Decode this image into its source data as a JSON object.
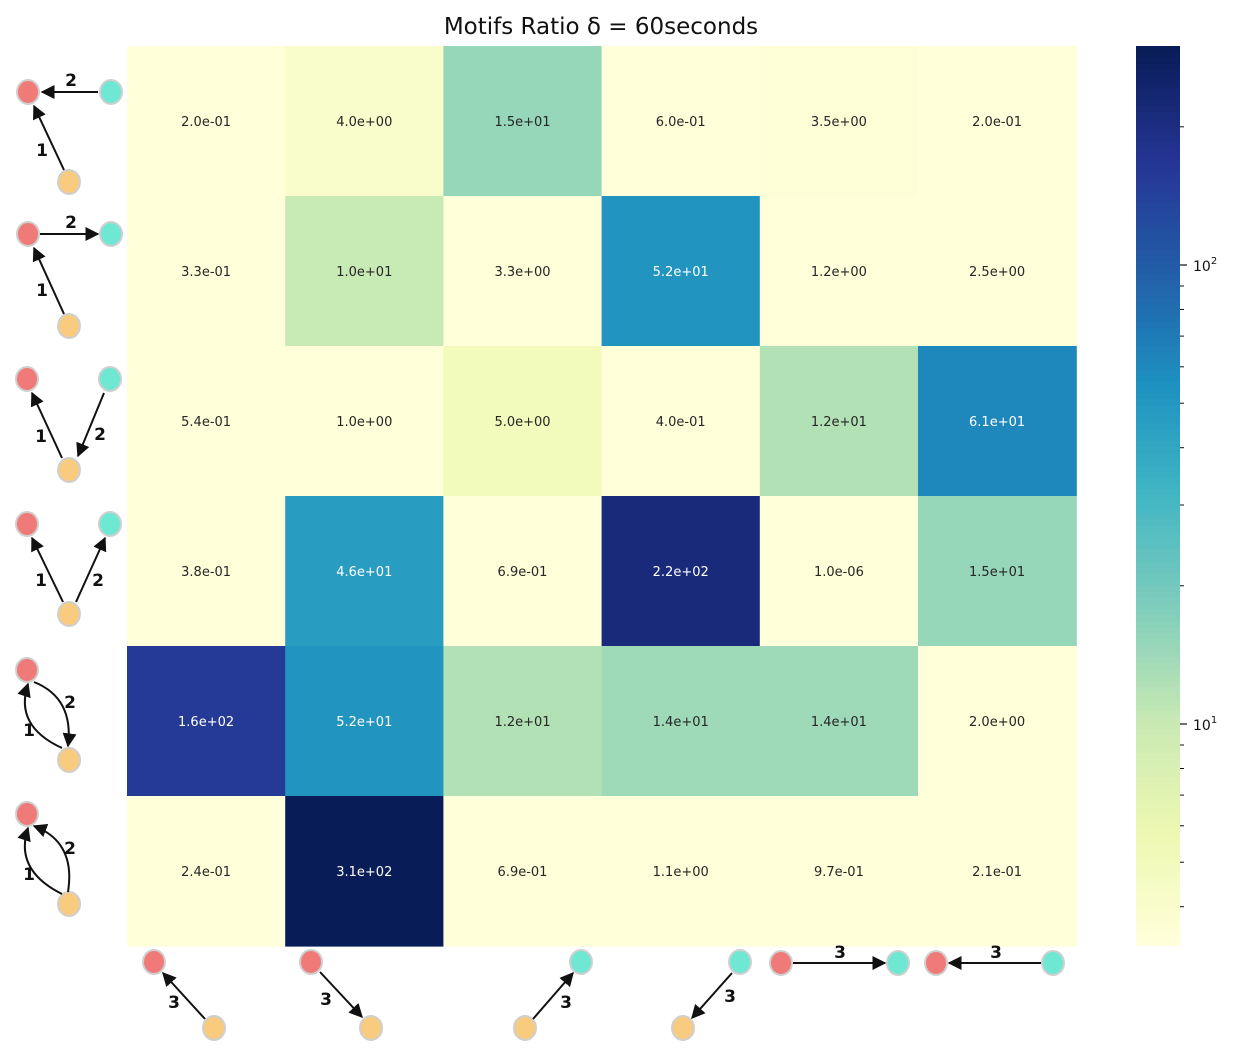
{
  "chart_data": {
    "type": "heatmap",
    "title": "Motifs Ratio  δ = 60seconds",
    "rows": 6,
    "cols": 6,
    "values": [
      [
        0.2,
        4.0,
        15,
        0.6,
        3.5,
        0.2
      ],
      [
        0.33,
        10,
        3.3,
        52,
        1.2,
        2.5
      ],
      [
        0.54,
        1.0,
        5.0,
        0.4,
        12,
        61
      ],
      [
        0.38,
        46,
        0.69,
        220,
        1e-06,
        15
      ],
      [
        160,
        52,
        12,
        14,
        14,
        2.0
      ],
      [
        0.24,
        310,
        0.69,
        1.1,
        0.97,
        0.21
      ]
    ],
    "labels": [
      [
        "2.0e-01",
        "4.0e+00",
        "1.5e+01",
        "6.0e-01",
        "3.5e+00",
        "2.0e-01"
      ],
      [
        "3.3e-01",
        "1.0e+01",
        "3.3e+00",
        "5.2e+01",
        "1.2e+00",
        "2.5e+00"
      ],
      [
        "5.4e-01",
        "1.0e+00",
        "5.0e+00",
        "4.0e-01",
        "1.2e+01",
        "6.1e+01"
      ],
      [
        "3.8e-01",
        "4.6e+01",
        "6.9e-01",
        "2.2e+02",
        "1.0e-06",
        "1.5e+01"
      ],
      [
        "1.6e+02",
        "5.2e+01",
        "1.2e+01",
        "1.4e+01",
        "1.4e+01",
        "2.0e+00"
      ],
      [
        "2.4e-01",
        "3.1e+02",
        "6.9e-01",
        "1.1e+00",
        "9.7e-01",
        "2.1e-01"
      ]
    ],
    "colorbar": {
      "scale": "log",
      "range": [
        3.3,
        300
      ],
      "colormap": "YlGnBu",
      "tick_values": [
        10,
        100
      ],
      "tick_base": "10",
      "tick_exponents": [
        "1",
        "2"
      ]
    },
    "row_motif_edge_labels": [
      [
        "2",
        "1"
      ],
      [
        "2",
        "1"
      ],
      [
        "1",
        "2"
      ],
      [
        "1",
        "2"
      ],
      [
        "1",
        "2"
      ],
      [
        "1",
        "2"
      ]
    ],
    "col_motif_edge_labels": [
      "3",
      "3",
      "3",
      "3",
      "3",
      "3"
    ],
    "motif_node_colors": {
      "red": "#ef7a78",
      "cyan": "#6ee8d3",
      "yellow": "#f8cb7e"
    }
  }
}
